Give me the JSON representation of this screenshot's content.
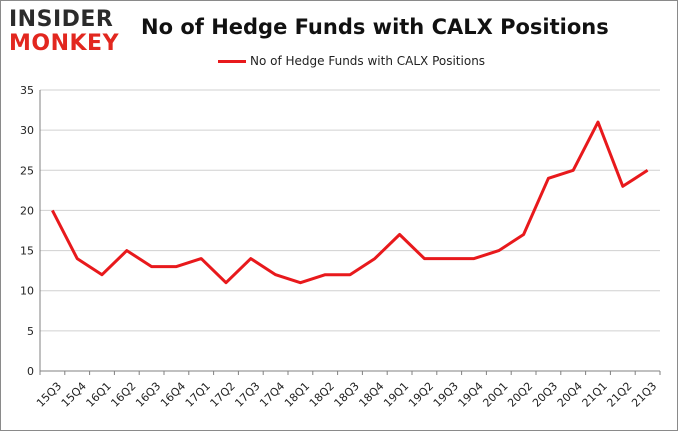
{
  "logo": {
    "line1": "INSIDER",
    "line2": "MONKEY"
  },
  "colors": {
    "series": "#e8191c",
    "grid": "#d0d0d0",
    "logo_accent": "#e2271f"
  },
  "chart_data": {
    "type": "line",
    "title": "No of Hedge Funds with CALX Positions",
    "xlabel": "",
    "ylabel": "",
    "ylim": [
      0,
      35
    ],
    "yticks": [
      0,
      5,
      10,
      15,
      20,
      25,
      30,
      35
    ],
    "grid": "horizontal",
    "legend_position": "top-center",
    "categories": [
      "15Q3",
      "15Q4",
      "16Q1",
      "16Q2",
      "16Q3",
      "16Q4",
      "17Q1",
      "17Q2",
      "17Q3",
      "17Q4",
      "18Q1",
      "18Q2",
      "18Q3",
      "18Q4",
      "19Q1",
      "19Q2",
      "19Q3",
      "19Q4",
      "20Q1",
      "20Q2",
      "20Q3",
      "20Q4",
      "21Q1",
      "21Q2",
      "21Q3"
    ],
    "series": [
      {
        "name": "No of Hedge Funds with CALX Positions",
        "values": [
          20,
          14,
          12,
          15,
          13,
          13,
          14,
          11,
          14,
          12,
          11,
          12,
          12,
          14,
          17,
          14,
          14,
          14,
          15,
          17,
          24,
          25,
          31,
          23,
          25
        ]
      }
    ]
  }
}
